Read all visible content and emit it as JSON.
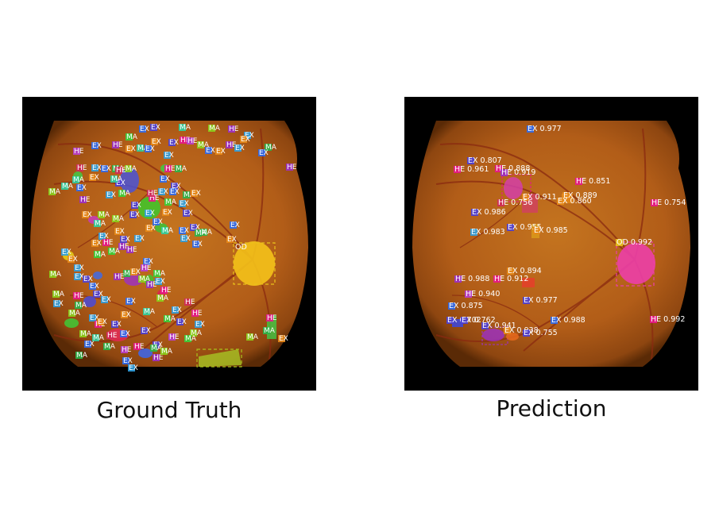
{
  "figure": {
    "left_caption": "Ground Truth",
    "right_caption": "Prediction"
  },
  "colors": {
    "fundus": "#b9661c",
    "fundus_edge": "#6e3306",
    "optic_disc_gt": "#f4c21a",
    "optic_disc_pred": "#ec3fa8",
    "he": "#e8178c",
    "ex": "#2f6cf0",
    "ma": "#39d23a",
    "frame": "#000000"
  },
  "ground_truth": {
    "annotations": [
      {
        "label": "EX"
      },
      {
        "label": "EX"
      },
      {
        "label": "EX"
      },
      {
        "label": "MA"
      },
      {
        "label": "MA"
      },
      {
        "label": "HE"
      },
      {
        "label": "MA"
      },
      {
        "label": "EX"
      },
      {
        "label": "HE"
      },
      {
        "label": "MA"
      },
      {
        "label": "EX"
      },
      {
        "label": "HE"
      },
      {
        "label": "EX"
      },
      {
        "label": "HE"
      },
      {
        "label": "EX"
      },
      {
        "label": "MA"
      },
      {
        "label": "EX"
      },
      {
        "label": "EX"
      },
      {
        "label": "MA"
      },
      {
        "label": "HE"
      },
      {
        "label": "EX"
      },
      {
        "label": "HE"
      },
      {
        "label": "EX"
      },
      {
        "label": "EX"
      },
      {
        "label": "EX"
      },
      {
        "label": "HE"
      },
      {
        "label": "HE"
      },
      {
        "label": "EX"
      },
      {
        "label": "EX"
      },
      {
        "label": "MA"
      },
      {
        "label": "MA"
      },
      {
        "label": "EX"
      },
      {
        "label": "HE"
      },
      {
        "label": "MA"
      },
      {
        "label": "EX"
      },
      {
        "label": "MA"
      },
      {
        "label": "EX"
      },
      {
        "label": "EX"
      },
      {
        "label": "HE"
      },
      {
        "label": "MA"
      },
      {
        "label": "EX"
      },
      {
        "label": "EX"
      },
      {
        "label": "MA"
      },
      {
        "label": "MA"
      },
      {
        "label": "HE"
      },
      {
        "label": "EX"
      },
      {
        "label": "HE"
      },
      {
        "label": "EX"
      },
      {
        "label": "EX"
      },
      {
        "label": "MA"
      },
      {
        "label": "EX"
      },
      {
        "label": "EX"
      },
      {
        "label": "MA"
      },
      {
        "label": "EX"
      },
      {
        "label": "EX"
      },
      {
        "label": "EX"
      },
      {
        "label": "EX"
      },
      {
        "label": "HE"
      },
      {
        "label": "EX"
      },
      {
        "label": "EX"
      },
      {
        "label": "MA"
      },
      {
        "label": "EX"
      },
      {
        "label": "EX"
      },
      {
        "label": "MA"
      },
      {
        "label": "EX"
      },
      {
        "label": "EX"
      },
      {
        "label": "MA"
      },
      {
        "label": "EX"
      },
      {
        "label": "EX"
      },
      {
        "label": "MA"
      },
      {
        "label": "EX"
      },
      {
        "label": "EX"
      },
      {
        "label": "HE"
      },
      {
        "label": "EX"
      },
      {
        "label": "MA"
      },
      {
        "label": "EX"
      },
      {
        "label": "EX"
      },
      {
        "label": "MA"
      },
      {
        "label": "EX"
      },
      {
        "label": "MA"
      },
      {
        "label": "MA"
      },
      {
        "label": "HE"
      },
      {
        "label": "EX"
      },
      {
        "label": "EX"
      },
      {
        "label": "EX"
      },
      {
        "label": "MA"
      },
      {
        "label": "EX"
      },
      {
        "label": "EX"
      },
      {
        "label": "MA"
      },
      {
        "label": "HE"
      },
      {
        "label": "EX"
      },
      {
        "label": "HE"
      },
      {
        "label": "MA"
      },
      {
        "label": "HE"
      },
      {
        "label": "MA"
      },
      {
        "label": "EX"
      },
      {
        "label": "EX"
      },
      {
        "label": "EX"
      },
      {
        "label": "MA"
      },
      {
        "label": "EX"
      },
      {
        "label": "HE"
      },
      {
        "label": "EX"
      },
      {
        "label": "MA"
      },
      {
        "label": "EX"
      },
      {
        "label": "HE"
      },
      {
        "label": "HE"
      },
      {
        "label": "MA"
      },
      {
        "label": "EX"
      },
      {
        "label": "EX"
      },
      {
        "label": "MA"
      },
      {
        "label": "MA"
      },
      {
        "label": "EX"
      },
      {
        "label": "HE"
      },
      {
        "label": "EX"
      },
      {
        "label": "EX"
      },
      {
        "label": "MA"
      },
      {
        "label": "MA"
      },
      {
        "label": "EX"
      },
      {
        "label": "HE"
      },
      {
        "label": "EX"
      },
      {
        "label": "EX"
      },
      {
        "label": "EX"
      },
      {
        "label": "HE"
      },
      {
        "label": "MA"
      },
      {
        "label": "EX"
      },
      {
        "label": "MA"
      },
      {
        "label": "EX"
      },
      {
        "label": "HE"
      },
      {
        "label": "HE"
      },
      {
        "label": "HE"
      },
      {
        "label": "MA"
      },
      {
        "label": "EX"
      },
      {
        "label": "HE"
      },
      {
        "label": "EX"
      },
      {
        "label": "MA"
      },
      {
        "label": "HE"
      },
      {
        "label": "MA"
      },
      {
        "label": "MA"
      },
      {
        "label": "MA"
      },
      {
        "label": "OD"
      },
      {
        "label": "HE"
      },
      {
        "label": "MA"
      },
      {
        "label": "EX"
      },
      {
        "label": "EX"
      },
      {
        "label": "EX"
      },
      {
        "label": "MA"
      },
      {
        "label": "MA"
      }
    ]
  },
  "prediction": {
    "detections": [
      {
        "label": "EX",
        "score": "0.977"
      },
      {
        "label": "EX",
        "score": "0.807"
      },
      {
        "label": "HE",
        "score": "0.961"
      },
      {
        "label": "HE",
        "score": "0.888"
      },
      {
        "label": "HE",
        "score": "0.919"
      },
      {
        "label": "HE",
        "score": "0.851"
      },
      {
        "label": "EX",
        "score": "0.911"
      },
      {
        "label": "EX",
        "score": "0.889"
      },
      {
        "label": "HE",
        "score": "0.756"
      },
      {
        "label": "EX",
        "score": "0.860"
      },
      {
        "label": "HE",
        "score": "0.754"
      },
      {
        "label": "EX",
        "score": "0.986"
      },
      {
        "label": "EX",
        "score": "0.983"
      },
      {
        "label": "EX",
        "score": "0.955"
      },
      {
        "label": "EX",
        "score": "0.985"
      },
      {
        "label": "OD",
        "score": "0.992"
      },
      {
        "label": "EX",
        "score": "0.894"
      },
      {
        "label": "HE",
        "score": "0.988"
      },
      {
        "label": "HE",
        "score": "0.912"
      },
      {
        "label": "HE",
        "score": "0.940"
      },
      {
        "label": "EX",
        "score": "0.977"
      },
      {
        "label": "EX",
        "score": "0.875"
      },
      {
        "label": "EX",
        "score": "0.702"
      },
      {
        "label": "EX",
        "score": "0.762"
      },
      {
        "label": "EX",
        "score": "0.941"
      },
      {
        "label": "EX",
        "score": "0.938"
      },
      {
        "label": "EX",
        "score": "0.755"
      },
      {
        "label": "EX",
        "score": "0.988"
      },
      {
        "label": "HE",
        "score": "0.992"
      }
    ]
  }
}
